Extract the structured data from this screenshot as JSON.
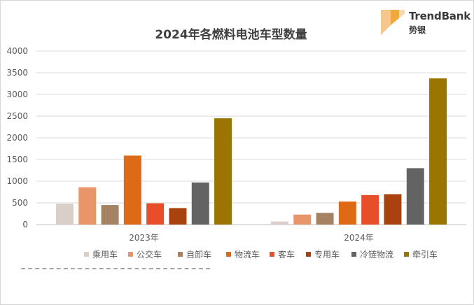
{
  "brand": {
    "name_en": "TrendBank",
    "name_cn": "势银",
    "colors": [
      "#f5c78a",
      "#f2a93b",
      "#f7d9ae"
    ]
  },
  "chart_data": {
    "type": "bar",
    "title": "2024年各燃料电池车型数量",
    "xlabel": "",
    "ylabel": "",
    "ylim": [
      0,
      4000
    ],
    "yticks": [
      0,
      500,
      1000,
      1500,
      2000,
      2500,
      3000,
      3500,
      4000
    ],
    "grid": true,
    "legend_position": "bottom",
    "categories": [
      "2023年",
      "2024年"
    ],
    "series": [
      {
        "name": "乘用车",
        "color": "#d9cec8",
        "values": [
          480,
          70
        ]
      },
      {
        "name": "公交车",
        "color": "#e8956a",
        "values": [
          860,
          230
        ]
      },
      {
        "name": "自卸车",
        "color": "#a48262",
        "values": [
          450,
          270
        ]
      },
      {
        "name": "物流车",
        "color": "#de6a16",
        "values": [
          1590,
          530
        ]
      },
      {
        "name": "客车",
        "color": "#e84e2a",
        "values": [
          490,
          680
        ]
      },
      {
        "name": "专用车",
        "color": "#a8430e",
        "values": [
          380,
          700
        ]
      },
      {
        "name": "冷链物流",
        "color": "#636363",
        "values": [
          970,
          1300
        ]
      },
      {
        "name": "牵引车",
        "color": "#9a7500",
        "values": [
          2450,
          3370
        ]
      }
    ]
  }
}
